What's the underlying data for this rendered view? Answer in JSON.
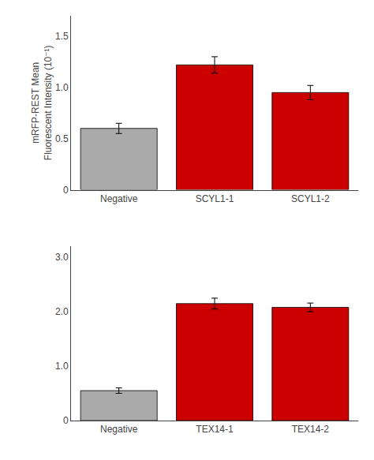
{
  "chart_data": [
    {
      "type": "bar",
      "categories": [
        "Negative",
        "SCYL1-1",
        "SCYL1-2"
      ],
      "values": [
        0.6,
        1.22,
        0.95
      ],
      "errors": [
        0.05,
        0.08,
        0.07
      ],
      "colors": [
        "#aaaaaa",
        "#cc0000",
        "#cc0000"
      ],
      "ylabel": "mRFP-REST Mean\nFluorescent Intensity (10⁻¹)",
      "ylim": [
        0,
        1.7
      ],
      "yticks": [
        0,
        0.5,
        {
          "value": 1.0,
          "label": "1.0"
        },
        1.5
      ],
      "grid": false
    },
    {
      "type": "bar",
      "categories": [
        "Negative",
        "TEX14-1",
        "TEX14-2"
      ],
      "values": [
        0.55,
        2.15,
        2.08
      ],
      "errors": [
        0.05,
        0.1,
        0.08
      ],
      "colors": [
        "#aaaaaa",
        "#cc0000",
        "#cc0000"
      ],
      "ylim": [
        0,
        3.2
      ],
      "yticks": [
        0,
        {
          "value": 1.0,
          "label": "1.0"
        },
        {
          "value": 2.0,
          "label": "2.0"
        },
        {
          "value": 3.0,
          "label": "3.0"
        }
      ],
      "grid": false
    }
  ]
}
